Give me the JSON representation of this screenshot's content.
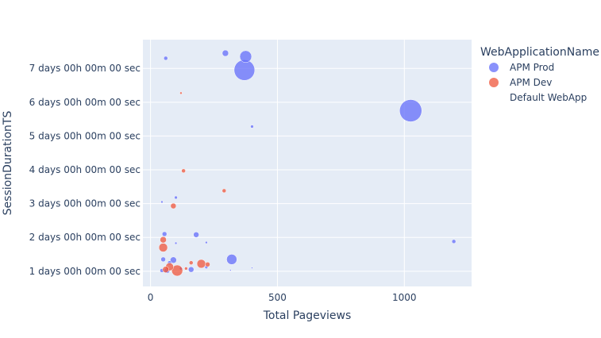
{
  "chart_data": {
    "type": "scatter",
    "xlabel": "Total Pageviews",
    "ylabel": "SessionDurationTS",
    "xlim": [
      -30,
      1265
    ],
    "ylim": [
      0.55,
      7.85
    ],
    "x_ticks": [
      0,
      500,
      1000
    ],
    "y_ticks": [
      1,
      2,
      3,
      4,
      5,
      6,
      7
    ],
    "y_tick_labels": [
      "1 days 00h 00m 00 sec",
      "2 days 00h 00m 00 sec",
      "3 days 00h 00m 00 sec",
      "4 days 00h 00m 00 sec",
      "5 days 00h 00m 00 sec",
      "6 days 00h 00m 00 sec",
      "7 days 00h 00m 00 sec"
    ],
    "grid": true,
    "legend_placement": "top-right",
    "legend_title": "WebApplicationName",
    "series": [
      {
        "name": "APM Prod",
        "color": "#636efa",
        "points": [
          {
            "x": 1025,
            "y": 5.75,
            "size": 28
          },
          {
            "x": 370,
            "y": 6.95,
            "size": 26
          },
          {
            "x": 375,
            "y": 7.35,
            "size": 15
          },
          {
            "x": 295,
            "y": 7.45,
            "size": 8
          },
          {
            "x": 60,
            "y": 7.3,
            "size": 5
          },
          {
            "x": 400,
            "y": 5.28,
            "size": 4
          },
          {
            "x": 1195,
            "y": 1.88,
            "size": 5
          },
          {
            "x": 320,
            "y": 1.35,
            "size": 13
          },
          {
            "x": 180,
            "y": 2.08,
            "size": 7
          },
          {
            "x": 55,
            "y": 2.1,
            "size": 6
          },
          {
            "x": 100,
            "y": 3.18,
            "size": 4
          },
          {
            "x": 45,
            "y": 3.05,
            "size": 3
          },
          {
            "x": 220,
            "y": 1.85,
            "size": 3
          },
          {
            "x": 100,
            "y": 1.83,
            "size": 3
          },
          {
            "x": 90,
            "y": 1.33,
            "size": 8
          },
          {
            "x": 50,
            "y": 1.35,
            "size": 6
          },
          {
            "x": 160,
            "y": 1.05,
            "size": 7
          },
          {
            "x": 65,
            "y": 1.02,
            "size": 7
          },
          {
            "x": 45,
            "y": 1.02,
            "size": 5
          },
          {
            "x": 220,
            "y": 1.12,
            "size": 4
          },
          {
            "x": 315,
            "y": 1.03,
            "size": 2
          },
          {
            "x": 400,
            "y": 1.1,
            "size": 2
          },
          {
            "x": 120,
            "y": 1.08,
            "size": 4
          },
          {
            "x": 75,
            "y": 1.25,
            "size": 5
          }
        ]
      },
      {
        "name": "APM Dev",
        "color": "#ef553b",
        "points": [
          {
            "x": 120,
            "y": 6.27,
            "size": 3
          },
          {
            "x": 130,
            "y": 3.97,
            "size": 5
          },
          {
            "x": 290,
            "y": 3.38,
            "size": 5
          },
          {
            "x": 90,
            "y": 2.93,
            "size": 7
          },
          {
            "x": 50,
            "y": 1.93,
            "size": 8
          },
          {
            "x": 50,
            "y": 1.7,
            "size": 11
          },
          {
            "x": 105,
            "y": 1.02,
            "size": 14
          },
          {
            "x": 75,
            "y": 1.13,
            "size": 10
          },
          {
            "x": 200,
            "y": 1.22,
            "size": 11
          },
          {
            "x": 160,
            "y": 1.25,
            "size": 5
          },
          {
            "x": 60,
            "y": 1.05,
            "size": 8
          },
          {
            "x": 225,
            "y": 1.2,
            "size": 6
          },
          {
            "x": 140,
            "y": 1.08,
            "size": 4
          }
        ]
      },
      {
        "name": "Default WebApp",
        "color": "#00cc96",
        "points": []
      }
    ]
  }
}
